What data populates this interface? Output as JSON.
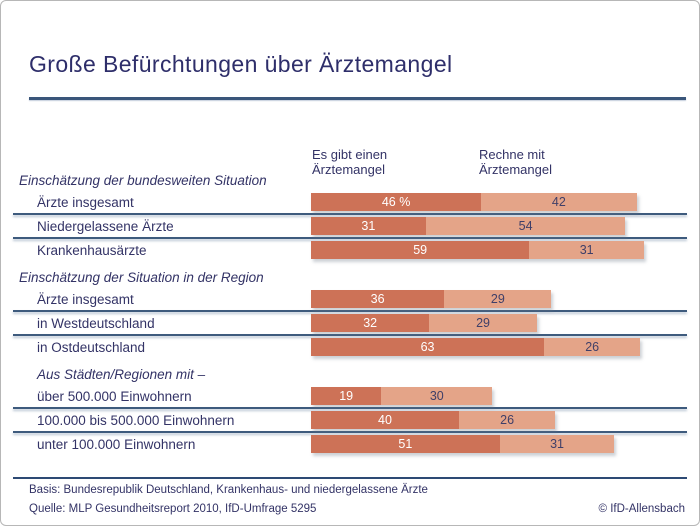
{
  "title": "Große Befürchtungen über Ärztemangel",
  "column_headers": [
    {
      "line1": "Es gibt einen",
      "line2": "Ärztemangel"
    },
    {
      "line1": "Rechne mit",
      "line2": "Ärztemangel"
    }
  ],
  "colors": {
    "bar_primary": "#cd7257",
    "bar_secondary": "#e4a488",
    "text_navy": "#333366",
    "rule_blue": "#3e5b7d"
  },
  "chart_data": {
    "type": "bar",
    "orientation": "horizontal",
    "stacked": true,
    "unit": "percent",
    "x_range": [
      0,
      100
    ],
    "grid": false,
    "legend_position": "top-as-column-headers",
    "series_names": [
      "Es gibt einen Ärztemangel",
      "Rechne mit Ärztemangel"
    ],
    "sections": [
      {
        "label": "Einschätzung der bundesweiten Situation",
        "indented": false,
        "rows": [
          {
            "label": "Ärzte insgesamt",
            "values": [
              46,
              42
            ],
            "value_labels": [
              "46 %",
              "42"
            ]
          },
          {
            "label": "Niedergelassene Ärzte",
            "values": [
              31,
              54
            ],
            "value_labels": [
              "31",
              "54"
            ]
          },
          {
            "label": "Krankenhausärzte",
            "values": [
              59,
              31
            ],
            "value_labels": [
              "59",
              "31"
            ]
          }
        ]
      },
      {
        "label": "Einschätzung der Situation in der Region",
        "indented": false,
        "rows": [
          {
            "label": "Ärzte insgesamt",
            "values": [
              36,
              29
            ],
            "value_labels": [
              "36",
              "29"
            ]
          },
          {
            "label": "in Westdeutschland",
            "values": [
              32,
              29
            ],
            "value_labels": [
              "32",
              "29"
            ]
          },
          {
            "label": "in Ostdeutschland",
            "values": [
              63,
              26
            ],
            "value_labels": [
              "63",
              "26"
            ]
          }
        ]
      },
      {
        "label": "Aus Städten/Regionen mit –",
        "indented": true,
        "rows": [
          {
            "label": "über 500.000 Einwohnern",
            "values": [
              19,
              30
            ],
            "value_labels": [
              "19",
              "30"
            ]
          },
          {
            "label": "100.000 bis 500.000 Einwohnern",
            "values": [
              40,
              26
            ],
            "value_labels": [
              "40",
              "26"
            ]
          },
          {
            "label": "unter 100.000 Einwohnern",
            "values": [
              51,
              31
            ],
            "value_labels": [
              "51",
              "31"
            ]
          }
        ]
      }
    ]
  },
  "footer": {
    "basis": "Basis: Bundesrepublik Deutschland, Krankenhaus- und niedergelassene Ärzte",
    "quelle": "Quelle: MLP Gesundheitsreport 2010, IfD-Umfrage 5295",
    "copyright": "© IfD-Allensbach"
  }
}
